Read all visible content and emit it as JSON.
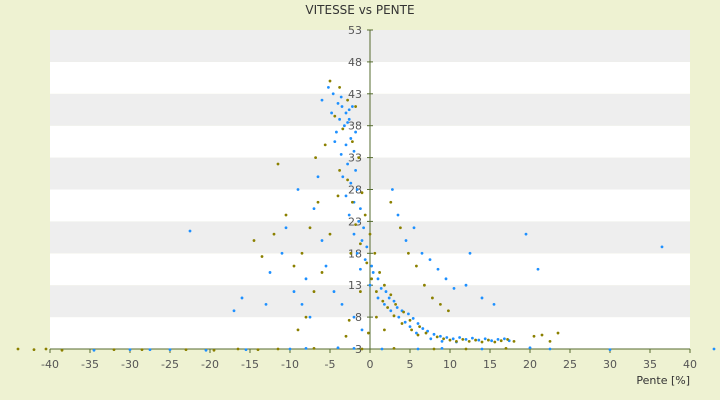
{
  "chart_data": {
    "type": "scatter",
    "title": "VITESSE vs PENTE",
    "xlabel": "Pente [%]",
    "ylabel": "",
    "xlim": [
      -40,
      40
    ],
    "ylim": [
      3,
      53
    ],
    "x_ticks": [
      "-40",
      "-35",
      "-30",
      "-25",
      "-20",
      "-15",
      "-10",
      "-5",
      "0",
      "5",
      "10",
      "15",
      "20",
      "25",
      "30",
      "35",
      "40"
    ],
    "y_ticks": [
      "3",
      "8",
      "13",
      "18",
      "23",
      "28",
      "33",
      "38",
      "43",
      "48",
      "53"
    ],
    "grid": "horizontal bands",
    "colors": {
      "background": "#eef2d2",
      "band": "#eeeeee",
      "plot": "#ffffff",
      "axis": "#556b2f",
      "series_a": "#1e90ff",
      "series_b": "#8b8000"
    },
    "series": [
      {
        "color": "#1e90ff",
        "points": [
          [
            -5.2,
            44
          ],
          [
            -4.6,
            43
          ],
          [
            -4.0,
            41.5
          ],
          [
            -3.5,
            41
          ],
          [
            -3.0,
            40
          ],
          [
            -2.6,
            40.5
          ],
          [
            -2.2,
            41
          ],
          [
            -3.8,
            39
          ],
          [
            -3.2,
            38
          ],
          [
            -2.8,
            38.5
          ],
          [
            -4.2,
            37
          ],
          [
            -2.4,
            36
          ],
          [
            -3.0,
            35
          ],
          [
            -2.0,
            34
          ],
          [
            -3.6,
            33.5
          ],
          [
            -2.8,
            32
          ],
          [
            -1.8,
            31
          ],
          [
            -3.4,
            30
          ],
          [
            -2.4,
            29
          ],
          [
            -1.6,
            28
          ],
          [
            -3.0,
            27
          ],
          [
            -2.0,
            26
          ],
          [
            -1.2,
            25
          ],
          [
            -2.6,
            24
          ],
          [
            -1.4,
            23
          ],
          [
            -0.8,
            22
          ],
          [
            -2.0,
            21
          ],
          [
            -1.0,
            20
          ],
          [
            -0.4,
            19
          ],
          [
            -1.6,
            18
          ],
          [
            -0.6,
            17
          ],
          [
            0.2,
            16
          ],
          [
            -1.2,
            15.5
          ],
          [
            0.4,
            15
          ],
          [
            1.0,
            14
          ],
          [
            0.0,
            13
          ],
          [
            1.4,
            12.5
          ],
          [
            2.0,
            12
          ],
          [
            1.0,
            11
          ],
          [
            2.4,
            11
          ],
          [
            3.0,
            10.5
          ],
          [
            1.8,
            10
          ],
          [
            3.4,
            9.5
          ],
          [
            2.6,
            9
          ],
          [
            4.0,
            9
          ],
          [
            4.8,
            8.5
          ],
          [
            3.6,
            8
          ],
          [
            5.4,
            7.8
          ],
          [
            4.4,
            7.2
          ],
          [
            6.0,
            7
          ],
          [
            5.0,
            6.5
          ],
          [
            6.6,
            6.2
          ],
          [
            7.2,
            5.8
          ],
          [
            5.8,
            5.5
          ],
          [
            8.0,
            5.3
          ],
          [
            8.8,
            5
          ],
          [
            9.6,
            4.8
          ],
          [
            10.4,
            4.6
          ],
          [
            11.2,
            4.8
          ],
          [
            12.0,
            4.5
          ],
          [
            12.8,
            4.7
          ],
          [
            13.6,
            4.4
          ],
          [
            14.4,
            4.6
          ],
          [
            15.2,
            4.3
          ],
          [
            16.0,
            4.5
          ],
          [
            16.8,
            4.6
          ],
          [
            17.4,
            4.3
          ],
          [
            7.6,
            4.6
          ],
          [
            9.0,
            4.2
          ],
          [
            10.8,
            4.1
          ],
          [
            -8.0,
            14
          ],
          [
            -9.5,
            12
          ],
          [
            -10.5,
            22
          ],
          [
            -11.0,
            18
          ],
          [
            -7.0,
            25
          ],
          [
            -6.5,
            30
          ],
          [
            -6.0,
            20
          ],
          [
            -5.5,
            16
          ],
          [
            -8.5,
            10
          ],
          [
            -7.5,
            8
          ],
          [
            -12.5,
            15
          ],
          [
            -13.0,
            10
          ],
          [
            -16.0,
            11
          ],
          [
            -17.0,
            9
          ],
          [
            -22.5,
            21.5
          ],
          [
            -9.0,
            28
          ],
          [
            -4.5,
            12
          ],
          [
            -3.5,
            10
          ],
          [
            -2.0,
            8
          ],
          [
            -1.0,
            6
          ],
          [
            2.8,
            28
          ],
          [
            3.5,
            24
          ],
          [
            4.5,
            20
          ],
          [
            5.5,
            22
          ],
          [
            6.5,
            18
          ],
          [
            7.5,
            17
          ],
          [
            8.5,
            15.5
          ],
          [
            9.5,
            14
          ],
          [
            10.5,
            12.5
          ],
          [
            12.0,
            13
          ],
          [
            12.5,
            18
          ],
          [
            14.0,
            11
          ],
          [
            15.5,
            10
          ],
          [
            19.5,
            21
          ],
          [
            21.0,
            15.5
          ],
          [
            36.5,
            19
          ],
          [
            -34.5,
            2.8
          ],
          [
            -30.0,
            2.9
          ],
          [
            -27.5,
            2.9
          ],
          [
            -25.0,
            2.9
          ],
          [
            -20.5,
            2.8
          ],
          [
            -15.5,
            2.9
          ],
          [
            -10.0,
            3.0
          ],
          [
            -8.0,
            3.1
          ],
          [
            -4.0,
            3.2
          ],
          [
            -2.0,
            3.1
          ],
          [
            1.5,
            3.0
          ],
          [
            6.0,
            3.0
          ],
          [
            9.0,
            3.1
          ],
          [
            14.0,
            3.0
          ],
          [
            20.0,
            3.2
          ],
          [
            22.5,
            3.0
          ],
          [
            30.0,
            2.9
          ],
          [
            43.0,
            3.0
          ],
          [
            -6.0,
            42.0
          ],
          [
            -4.8,
            40.0
          ],
          [
            -3.6,
            42.5
          ],
          [
            -2.6,
            39.0
          ],
          [
            -1.8,
            37.0
          ],
          [
            -4.4,
            35.5
          ]
        ]
      },
      {
        "color": "#8b8000",
        "points": [
          [
            -5.0,
            45
          ],
          [
            -3.8,
            44
          ],
          [
            -2.8,
            42
          ],
          [
            -1.8,
            41
          ],
          [
            -4.4,
            39.5
          ],
          [
            -3.4,
            37.5
          ],
          [
            -2.2,
            35.5
          ],
          [
            -1.4,
            33
          ],
          [
            -3.8,
            31
          ],
          [
            -2.8,
            29.5
          ],
          [
            -1.0,
            27.5
          ],
          [
            -2.2,
            26
          ],
          [
            -0.6,
            24
          ],
          [
            -1.8,
            22.5
          ],
          [
            0.0,
            21
          ],
          [
            -1.2,
            19.5
          ],
          [
            0.6,
            18
          ],
          [
            -0.4,
            16.5
          ],
          [
            1.2,
            15
          ],
          [
            0.2,
            14
          ],
          [
            1.8,
            13
          ],
          [
            0.8,
            12
          ],
          [
            2.6,
            11.5
          ],
          [
            1.6,
            10.5
          ],
          [
            3.2,
            10
          ],
          [
            2.2,
            9.5
          ],
          [
            4.2,
            8.8
          ],
          [
            3.0,
            8.2
          ],
          [
            5.0,
            7.5
          ],
          [
            4.0,
            7
          ],
          [
            6.2,
            6.5
          ],
          [
            5.2,
            6
          ],
          [
            7.0,
            5.5
          ],
          [
            6.0,
            5.2
          ],
          [
            8.4,
            4.9
          ],
          [
            9.2,
            4.6
          ],
          [
            10.0,
            4.4
          ],
          [
            10.8,
            4.2
          ],
          [
            11.6,
            4.5
          ],
          [
            12.4,
            4.2
          ],
          [
            13.2,
            4.4
          ],
          [
            14.0,
            4.1
          ],
          [
            14.8,
            4.4
          ],
          [
            15.6,
            4.1
          ],
          [
            16.4,
            4.3
          ],
          [
            17.2,
            4.5
          ],
          [
            18.0,
            4.2
          ],
          [
            20.5,
            5.0
          ],
          [
            21.5,
            5.2
          ],
          [
            22.5,
            4.2
          ],
          [
            23.5,
            5.5
          ],
          [
            -6.5,
            26
          ],
          [
            -7.5,
            22
          ],
          [
            -8.5,
            18
          ],
          [
            -9.5,
            16
          ],
          [
            -10.5,
            24
          ],
          [
            -11.5,
            32
          ],
          [
            -12.0,
            21
          ],
          [
            -13.5,
            17.5
          ],
          [
            -14.5,
            20
          ],
          [
            -7.0,
            12
          ],
          [
            -8.0,
            8
          ],
          [
            -9.0,
            6
          ],
          [
            -6.0,
            15
          ],
          [
            -5.0,
            21
          ],
          [
            -4.0,
            27
          ],
          [
            -6.8,
            33
          ],
          [
            -5.6,
            35
          ],
          [
            -2.4,
            18
          ],
          [
            -1.2,
            12
          ],
          [
            0.8,
            8
          ],
          [
            1.8,
            6
          ],
          [
            2.6,
            26
          ],
          [
            3.8,
            22
          ],
          [
            4.8,
            18
          ],
          [
            5.8,
            16
          ],
          [
            6.8,
            13
          ],
          [
            7.8,
            11
          ],
          [
            8.8,
            10
          ],
          [
            9.8,
            9
          ],
          [
            -38.5,
            2.8
          ],
          [
            -32.0,
            2.9
          ],
          [
            -28.5,
            2.9
          ],
          [
            -23.0,
            2.9
          ],
          [
            -19.5,
            2.8
          ],
          [
            -16.5,
            3.0
          ],
          [
            -14.0,
            2.9
          ],
          [
            -11.5,
            3.0
          ],
          [
            -7.0,
            3.1
          ],
          [
            -1.0,
            3.0
          ],
          [
            3.0,
            3.1
          ],
          [
            8.0,
            3.0
          ],
          [
            12.0,
            3.0
          ],
          [
            17.0,
            3.1
          ],
          [
            -44.0,
            3.0
          ],
          [
            -40.5,
            3.0
          ],
          [
            -42.0,
            2.9
          ],
          [
            -3.0,
            5
          ],
          [
            -2.6,
            7.5
          ],
          [
            -0.2,
            5.5
          ]
        ]
      }
    ]
  }
}
